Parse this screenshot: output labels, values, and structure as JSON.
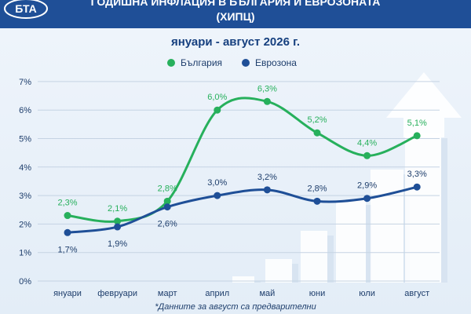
{
  "header": {
    "logo_text": "БТА",
    "title_line1": "ГОДИШНА ИНФЛАЦИЯ В БЪЛГАРИЯ И ЕВРОЗОНАТА",
    "title_line2": "(ХИПЦ)"
  },
  "colors": {
    "header_bg": "#1f4f97",
    "bulgaria": "#27b05c",
    "eurozone": "#1f4f97"
  },
  "chart_data": {
    "type": "line",
    "title": "ГОДИШНА ИНФЛАЦИЯ В БЪЛГАРИЯ И ЕВРОЗОНАТА",
    "subtitle": "януари - август 2026 г.",
    "categories": [
      "януари",
      "февруари",
      "март",
      "април",
      "май",
      "юни",
      "юли",
      "август"
    ],
    "series": [
      {
        "name": "България",
        "values": [
          2.3,
          2.1,
          2.8,
          6.0,
          6.3,
          5.2,
          4.4,
          5.1
        ],
        "labels": [
          "2,3%",
          "2,1%",
          "2,8%",
          "6,0%",
          "6,3%",
          "5,2%",
          "4,4%",
          "5,1%"
        ]
      },
      {
        "name": "Еврозона",
        "values": [
          1.7,
          1.9,
          2.6,
          3.0,
          3.2,
          2.8,
          2.9,
          3.3
        ],
        "labels": [
          "1,7%",
          "1,9%",
          "2,6%",
          "3,0%",
          "3,2%",
          "2,8%",
          "2,9%",
          "3,3%"
        ]
      }
    ],
    "y_ticks": [
      0,
      1,
      2,
      3,
      4,
      5,
      6,
      7
    ],
    "y_tick_labels": [
      "0%",
      "1%",
      "2%",
      "3%",
      "4%",
      "5%",
      "6%",
      "7%"
    ],
    "ylim": [
      0,
      7
    ],
    "grid": true,
    "legend": "top-center",
    "footnote": "*Данните за август са предварителни"
  }
}
